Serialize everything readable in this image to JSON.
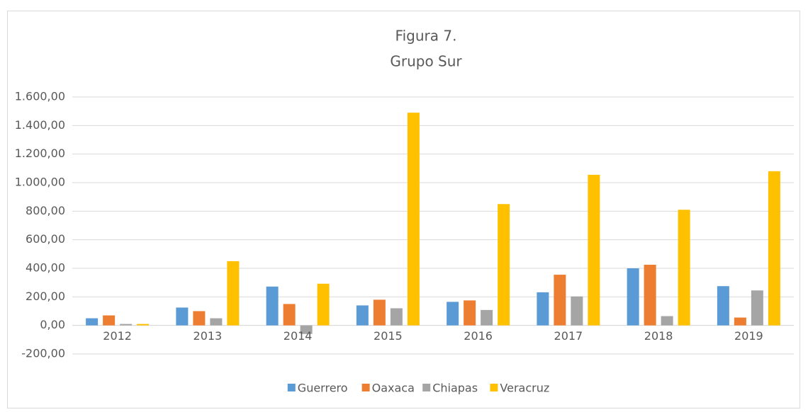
{
  "chart_data": {
    "type": "bar",
    "title": "Figura 7.",
    "subtitle": "Grupo Sur",
    "categories": [
      "2012",
      "2013",
      "2014",
      "2015",
      "2016",
      "2017",
      "2018",
      "2019"
    ],
    "series": [
      {
        "name": "Guerrero",
        "color": "#5b9bd5",
        "values": [
          50,
          125,
          272,
          140,
          165,
          232,
          400,
          275
        ]
      },
      {
        "name": "Oaxaca",
        "color": "#ed7d31",
        "values": [
          70,
          100,
          150,
          180,
          175,
          355,
          425,
          55
        ]
      },
      {
        "name": "Chiapas",
        "color": "#a5a5a5",
        "values": [
          10,
          50,
          -60,
          120,
          108,
          203,
          65,
          245
        ]
      },
      {
        "name": "Veracruz",
        "color": "#ffc000",
        "values": [
          10,
          450,
          292,
          1490,
          850,
          1055,
          810,
          1080
        ]
      }
    ],
    "ylim": [
      -200,
      1600
    ],
    "yticks": [
      {
        "value": -200,
        "label": "-200,00"
      },
      {
        "value": 0,
        "label": "0,00"
      },
      {
        "value": 200,
        "label": "200,00"
      },
      {
        "value": 400,
        "label": "400,00"
      },
      {
        "value": 600,
        "label": "600,00"
      },
      {
        "value": 800,
        "label": "800,00"
      },
      {
        "value": 1000,
        "label": "1.000,00"
      },
      {
        "value": 1200,
        "label": "1.200,00"
      },
      {
        "value": 1400,
        "label": "1.400,00"
      },
      {
        "value": 1600,
        "label": "1.600,00"
      }
    ],
    "grid": true,
    "legend": "bottom"
  }
}
